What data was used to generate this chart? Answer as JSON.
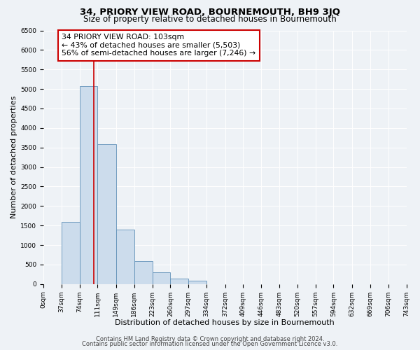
{
  "title": "34, PRIORY VIEW ROAD, BOURNEMOUTH, BH9 3JQ",
  "subtitle": "Size of property relative to detached houses in Bournemouth",
  "xlabel": "Distribution of detached houses by size in Bournemouth",
  "ylabel": "Number of detached properties",
  "bar_edges": [
    0,
    37,
    74,
    111,
    149,
    186,
    223,
    260,
    297,
    334,
    372,
    409,
    446,
    483,
    520,
    557,
    594,
    632,
    669,
    706,
    743
  ],
  "bar_heights": [
    0,
    1600,
    5080,
    3580,
    1400,
    580,
    300,
    130,
    80,
    0,
    0,
    0,
    0,
    0,
    0,
    0,
    0,
    0,
    0,
    0
  ],
  "bar_color": "#ccdcec",
  "bar_edge_color": "#6090b8",
  "property_size": 103,
  "vline_color": "#cc0000",
  "annotation_box_edgecolor": "#cc0000",
  "annotation_text_line1": "34 PRIORY VIEW ROAD: 103sqm",
  "annotation_text_line2": "← 43% of detached houses are smaller (5,503)",
  "annotation_text_line3": "56% of semi-detached houses are larger (7,246) →",
  "ylim": [
    0,
    6500
  ],
  "yticks": [
    0,
    500,
    1000,
    1500,
    2000,
    2500,
    3000,
    3500,
    4000,
    4500,
    5000,
    5500,
    6000,
    6500
  ],
  "xtick_labels": [
    "0sqm",
    "37sqm",
    "74sqm",
    "111sqm",
    "149sqm",
    "186sqm",
    "223sqm",
    "260sqm",
    "297sqm",
    "334sqm",
    "372sqm",
    "409sqm",
    "446sqm",
    "483sqm",
    "520sqm",
    "557sqm",
    "594sqm",
    "632sqm",
    "669sqm",
    "706sqm",
    "743sqm"
  ],
  "footer_line1": "Contains HM Land Registry data © Crown copyright and database right 2024.",
  "footer_line2": "Contains public sector information licensed under the Open Government Licence v3.0.",
  "bg_color": "#eef2f6",
  "grid_color": "#ffffff",
  "title_fontsize": 9.5,
  "subtitle_fontsize": 8.5,
  "axis_label_fontsize": 8,
  "tick_fontsize": 6.5,
  "annotation_fontsize": 7.8,
  "footer_fontsize": 6
}
